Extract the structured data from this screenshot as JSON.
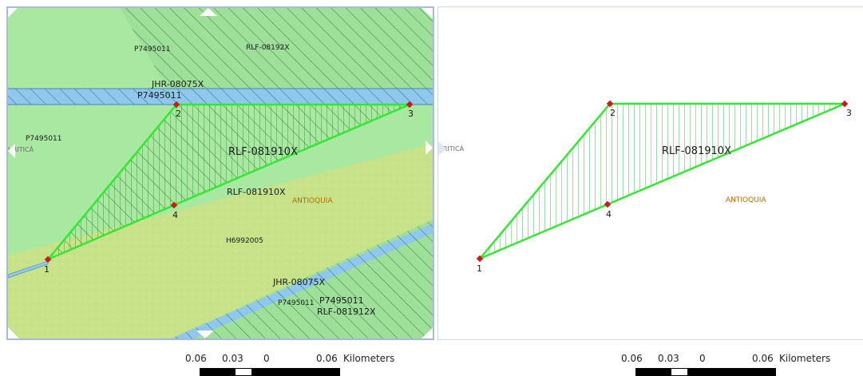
{
  "left_map": {
    "labels": {
      "p_top": "P7495011",
      "rlf_08192": "RLF-08192X",
      "jhr_top": "JHR-08075X",
      "p_band": "P7495011",
      "p_left": "P7495011",
      "town": "URITICÁ",
      "rlf_center": "RLF-081910X",
      "rlf_edge": "RLF-081910X",
      "dept": "ANTIOQUIA",
      "h_code": "H6992005",
      "jhr_bottom": "JHR-08075X",
      "p_bottom_a": "P7495011",
      "p_bottom_b": "P7495011",
      "rlf_081912": "RLF-081912X"
    },
    "vertices": [
      "1",
      "2",
      "3",
      "4"
    ]
  },
  "right_map": {
    "labels": {
      "town": "URITICÁ",
      "rlf_center": "RLF-081910X",
      "dept": "ANTIOQUIA"
    },
    "vertices": [
      "1",
      "2",
      "3",
      "4"
    ]
  },
  "scale": {
    "ticks": [
      "0.06",
      "0.03",
      "0",
      "0.06"
    ],
    "unit": "Kilometers"
  },
  "colors": {
    "polygon": "#33e833",
    "vertex": "#cc1a1a",
    "zone_green": "#a8e8a0",
    "zone_yellow": "#c8e28a",
    "band_blue": "#8fc8ec"
  }
}
